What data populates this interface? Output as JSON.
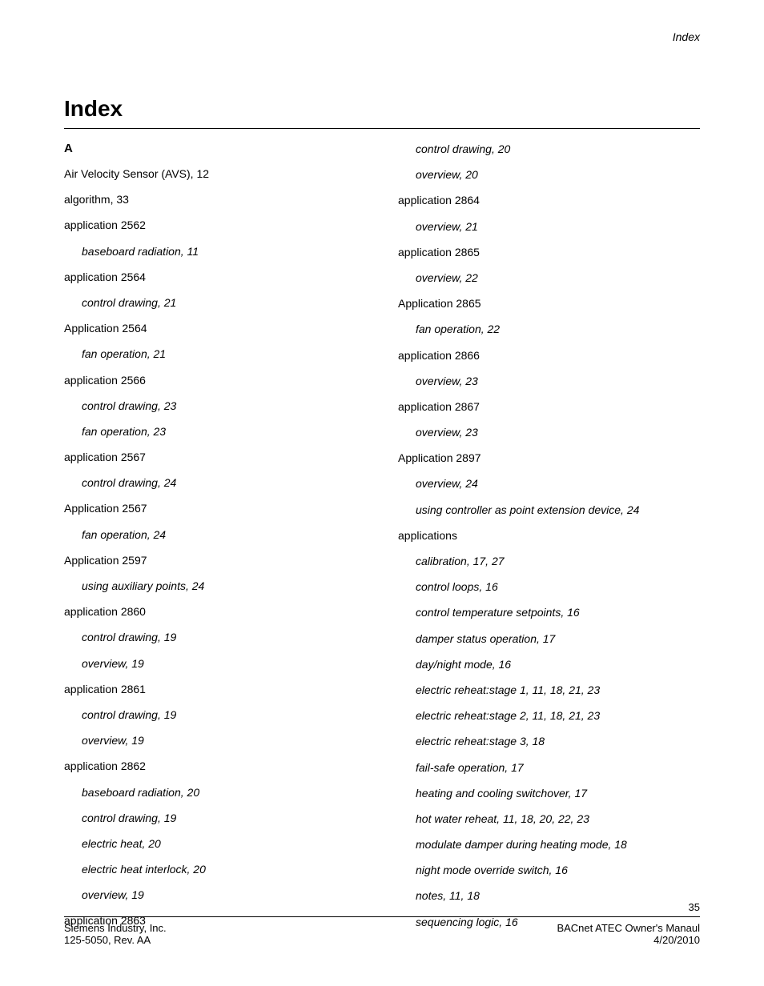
{
  "running_header": "Index",
  "title": "Index",
  "section_letter": "A",
  "col1": [
    {
      "type": "entry",
      "text": "Air Velocity Sensor (AVS), 12"
    },
    {
      "type": "entry",
      "text": "algorithm, 33"
    },
    {
      "type": "entry",
      "text": "application 2562"
    },
    {
      "type": "sub",
      "text": "baseboard radiation, 11"
    },
    {
      "type": "entry",
      "text": "application 2564"
    },
    {
      "type": "sub",
      "text": "control drawing, 21"
    },
    {
      "type": "entry",
      "text": "Application 2564"
    },
    {
      "type": "sub",
      "text": "fan operation, 21"
    },
    {
      "type": "entry",
      "text": "application 2566"
    },
    {
      "type": "sub",
      "text": "control drawing, 23"
    },
    {
      "type": "sub",
      "text": "fan operation, 23"
    },
    {
      "type": "entry",
      "text": "application 2567"
    },
    {
      "type": "sub",
      "text": "control drawing, 24"
    },
    {
      "type": "entry",
      "text": "Application 2567"
    },
    {
      "type": "sub",
      "text": "fan operation, 24"
    },
    {
      "type": "entry",
      "text": "Application 2597"
    },
    {
      "type": "sub",
      "text": "using auxiliary points, 24"
    },
    {
      "type": "entry",
      "text": "application 2860"
    },
    {
      "type": "sub",
      "text": "control drawing, 19"
    },
    {
      "type": "sub",
      "text": "overview, 19"
    },
    {
      "type": "entry",
      "text": "application 2861"
    },
    {
      "type": "sub",
      "text": "control drawing, 19"
    },
    {
      "type": "sub",
      "text": "overview, 19"
    },
    {
      "type": "entry",
      "text": "application 2862"
    },
    {
      "type": "sub",
      "text": "baseboard radiation, 20"
    },
    {
      "type": "sub",
      "text": "control drawing, 19"
    },
    {
      "type": "sub",
      "text": "electric heat, 20"
    },
    {
      "type": "sub",
      "text": "electric heat interlock, 20"
    },
    {
      "type": "sub",
      "text": "overview, 19"
    },
    {
      "type": "entry",
      "text": "application 2863"
    }
  ],
  "col2": [
    {
      "type": "sub",
      "text": "control drawing, 20"
    },
    {
      "type": "sub",
      "text": "overview, 20"
    },
    {
      "type": "entry",
      "text": "application 2864"
    },
    {
      "type": "sub",
      "text": "overview, 21"
    },
    {
      "type": "entry",
      "text": "application 2865"
    },
    {
      "type": "sub",
      "text": "overview, 22"
    },
    {
      "type": "entry",
      "text": "Application 2865"
    },
    {
      "type": "sub",
      "text": "fan operation, 22"
    },
    {
      "type": "entry",
      "text": "application 2866"
    },
    {
      "type": "sub",
      "text": "overview, 23"
    },
    {
      "type": "entry",
      "text": "application 2867"
    },
    {
      "type": "sub",
      "text": "overview, 23"
    },
    {
      "type": "entry",
      "text": "Application 2897"
    },
    {
      "type": "sub",
      "text": "overview, 24"
    },
    {
      "type": "sub",
      "text": "using controller as point extension device, 24"
    },
    {
      "type": "entry",
      "text": "applications"
    },
    {
      "type": "sub",
      "text": "calibration, 17, 27"
    },
    {
      "type": "sub",
      "text": "control loops, 16"
    },
    {
      "type": "sub",
      "text": "control temperature setpoints, 16"
    },
    {
      "type": "sub",
      "text": "damper status operation, 17"
    },
    {
      "type": "sub",
      "text": "day/night mode, 16"
    },
    {
      "type": "sub",
      "text": "electric reheat:stage 1, 11, 18, 21, 23"
    },
    {
      "type": "sub",
      "text": "electric reheat:stage 2, 11, 18, 21, 23"
    },
    {
      "type": "sub",
      "text": "electric reheat:stage 3, 18"
    },
    {
      "type": "sub",
      "text": "fail-safe operation, 17"
    },
    {
      "type": "sub",
      "text": "heating and cooling switchover, 17"
    },
    {
      "type": "sub",
      "text": "hot water reheat, 11, 18, 20, 22, 23"
    },
    {
      "type": "sub",
      "text": "modulate damper during heating mode, 18"
    },
    {
      "type": "sub",
      "text": "night mode override switch, 16"
    },
    {
      "type": "sub",
      "text": "notes, 11, 18"
    },
    {
      "type": "sub",
      "text": "sequencing logic, 16"
    }
  ],
  "footer": {
    "page_num": "35",
    "left1": "Siemens Industry, Inc.",
    "left2": "125-5050, Rev. AA",
    "right1": "BACnet ATEC Owner's Manaul",
    "right2": "4/20/2010"
  }
}
